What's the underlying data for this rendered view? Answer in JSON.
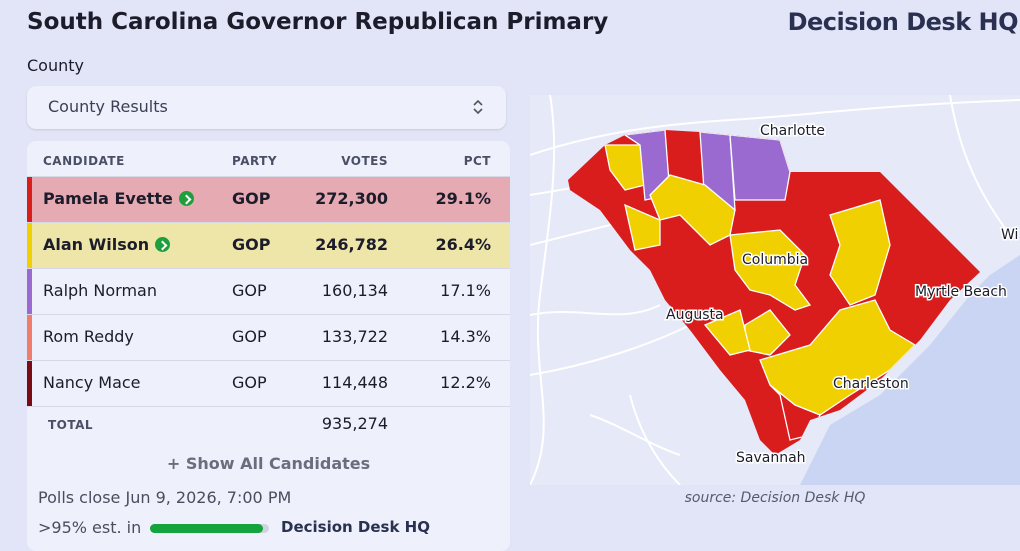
{
  "header": {
    "title": "South Carolina Governor Republican Primary",
    "logo": "Decision Desk HQ"
  },
  "filter": {
    "label": "County",
    "selected": "County Results"
  },
  "table": {
    "columns": [
      "CANDIDATE",
      "PARTY",
      "VOTES",
      "PCT"
    ],
    "rows": [
      {
        "candidate": "Pamela Evette",
        "party": "GOP",
        "votes": "272,300",
        "pct": "29.1%",
        "color": "#d91c1c",
        "advancing": true
      },
      {
        "candidate": "Alan Wilson",
        "party": "GOP",
        "votes": "246,782",
        "pct": "26.4%",
        "color": "#f0d000",
        "advancing": true
      },
      {
        "candidate": "Ralph Norman",
        "party": "GOP",
        "votes": "160,134",
        "pct": "17.1%",
        "color": "#9a6ad0",
        "advancing": false
      },
      {
        "candidate": "Rom Reddy",
        "party": "GOP",
        "votes": "133,722",
        "pct": "14.3%",
        "color": "#f07c6c",
        "advancing": false
      },
      {
        "candidate": "Nancy Mace",
        "party": "GOP",
        "votes": "114,448",
        "pct": "12.2%",
        "color": "#7a0a14",
        "advancing": false
      }
    ],
    "total": {
      "label": "TOTAL",
      "votes": "935,274"
    }
  },
  "show_all": "+ Show All Candidates",
  "footer": {
    "polls_close": "Polls close Jun 9, 2026, 7:00 PM",
    "reporting": ">95% est. in",
    "logo": "Decision Desk HQ"
  },
  "map": {
    "cities": [
      "Charlotte",
      "Columbia",
      "Myrtle Beach",
      "Augusta",
      "Charleston",
      "Savannah",
      "Wi"
    ],
    "source": "source: Decision Desk HQ"
  }
}
